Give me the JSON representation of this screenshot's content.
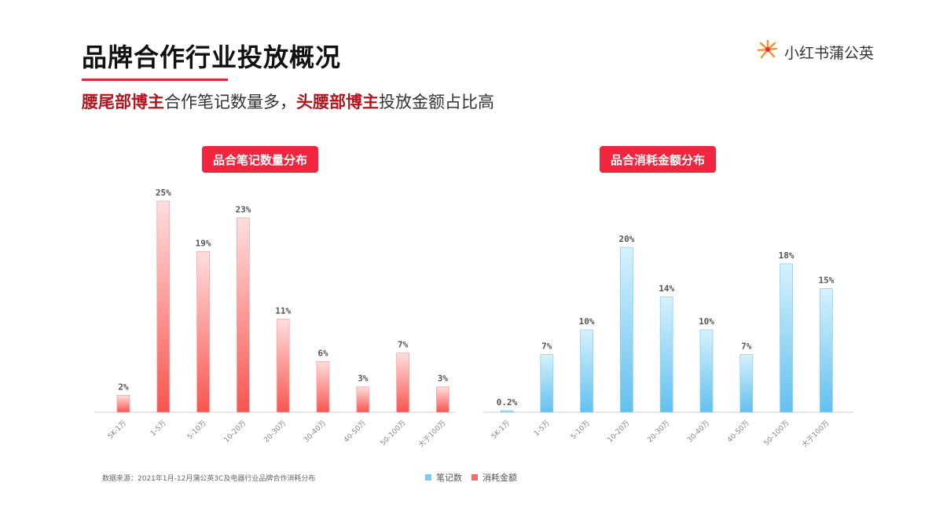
{
  "header": {
    "title": "品牌合作行业投放概况",
    "subtitle_parts": [
      {
        "text": "腰尾部博主",
        "highlight": true
      },
      {
        "text": "合作笔记数量多，",
        "highlight": false
      },
      {
        "text": "头腰部博主",
        "highlight": true
      },
      {
        "text": "投放金额占比高",
        "highlight": false
      }
    ]
  },
  "brand": {
    "name": "小红书蒲公英",
    "icon": "dandelion-logo-icon"
  },
  "footer": {
    "source": "数据来源：2021年1月-12月蒲公英3C及电器行业品牌合作消耗分布",
    "legend": [
      "笔记数",
      "消耗金额"
    ]
  },
  "colors": {
    "accent": "#f2253f",
    "red_top": "#ffd9d9",
    "red_bottom": "#f7554f",
    "blue_top": "#cfeefc",
    "blue_bottom": "#63c0ee"
  },
  "chart_data": [
    {
      "type": "bar",
      "title": "品合笔记数量分布",
      "categories": [
        "5K-1万",
        "1-5万",
        "5-10万",
        "10-20万",
        "20-30万",
        "30-40万",
        "40-50万",
        "50-100万",
        "大于100万"
      ],
      "values": [
        2,
        25,
        19,
        23,
        11,
        6,
        3,
        7,
        3
      ],
      "value_labels": [
        "2%",
        "25%",
        "19%",
        "23%",
        "11%",
        "6%",
        "3%",
        "7%",
        "3%"
      ],
      "unit": "%",
      "color": "red",
      "ylim": [
        0,
        25
      ],
      "grid": false
    },
    {
      "type": "bar",
      "title": "品合消耗金额分布",
      "categories": [
        "5K-1万",
        "1-5万",
        "5-10万",
        "10-20万",
        "20-30万",
        "30-40万",
        "40-50万",
        "50-100万",
        "大于100万"
      ],
      "values": [
        0.2,
        7,
        10,
        20,
        14,
        10,
        7,
        18,
        15
      ],
      "value_labels": [
        "0.2%",
        "7%",
        "10%",
        "20%",
        "14%",
        "10%",
        "7%",
        "18%",
        "15%"
      ],
      "unit": "%",
      "color": "blue",
      "ylim": [
        0,
        20
      ],
      "grid": false
    }
  ]
}
